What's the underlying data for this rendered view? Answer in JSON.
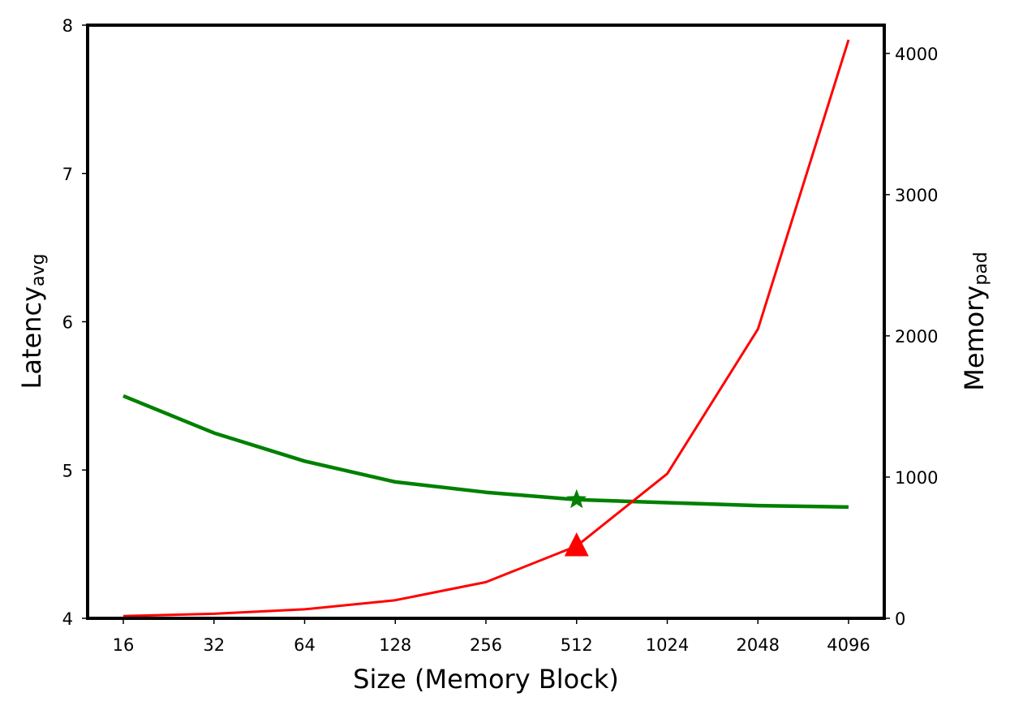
{
  "chart_data": {
    "type": "line",
    "xlabel": "Size (Memory Block)",
    "ylabel_left": {
      "main": "Latency",
      "sub": "avg"
    },
    "ylabel_right": {
      "main": "Memory",
      "sub": "pad"
    },
    "categories": [
      "16",
      "32",
      "64",
      "128",
      "256",
      "512",
      "1024",
      "2048",
      "4096"
    ],
    "ylim_left": [
      4,
      8
    ],
    "yticks_left": [
      "4",
      "5",
      "6",
      "7",
      "8"
    ],
    "ylim_right": [
      0,
      4200
    ],
    "yticks_right": [
      "0",
      "1000",
      "2000",
      "3000",
      "4000"
    ],
    "grid": false,
    "series": [
      {
        "axis": "left",
        "color": "#008000",
        "values": [
          5.5,
          5.25,
          5.06,
          4.92,
          4.85,
          4.8,
          4.78,
          4.76,
          4.75
        ],
        "marker": {
          "index": 5,
          "value": 4.8,
          "shape": "star"
        }
      },
      {
        "axis": "right",
        "color": "#ff0000",
        "values": [
          16,
          32,
          64,
          128,
          256,
          512,
          1024,
          2048,
          4096
        ],
        "marker": {
          "index": 5,
          "value": 512,
          "shape": "triangle"
        }
      }
    ]
  }
}
